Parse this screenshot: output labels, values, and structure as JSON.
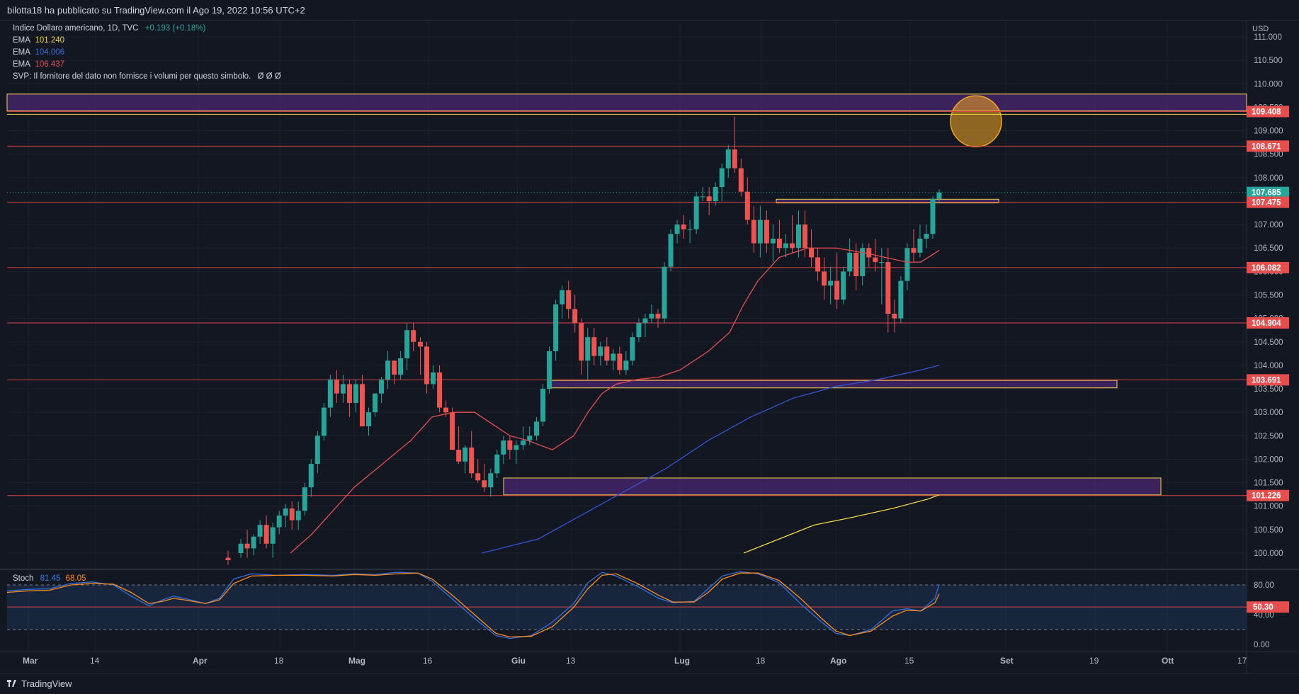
{
  "header": {
    "published_by": "bilotta18 ha pubblicato su TradingView.com il Ago 19, 2022 10:56 UTC+2"
  },
  "legend": {
    "symbol": "Indice Dollaro americano, 1D, TVC",
    "change": "+0.193 (+0.18%)",
    "change_color": "#26a69a",
    "ema1_label": "EMA",
    "ema1_value": "101.240",
    "ema1_color": "#f5d64a",
    "ema2_label": "EMA",
    "ema2_value": "104.006",
    "ema2_color": "#2f56d6",
    "ema3_label": "EMA",
    "ema3_value": "106.437",
    "ema3_color": "#e84d4d",
    "svp_text": "SVP: Il fornitore del dato non fornisce i volumi per questo simbolo.",
    "svp_symbols": "Ø  Ø  Ø"
  },
  "price_axis": {
    "currency": "USD",
    "ticks": [
      "111.000",
      "110.500",
      "110.000",
      "109.500",
      "109.000",
      "108.500",
      "108.000",
      "107.500",
      "107.000",
      "106.500",
      "106.000",
      "105.500",
      "105.000",
      "104.500",
      "104.000",
      "103.500",
      "103.000",
      "102.500",
      "102.000",
      "101.500",
      "101.000",
      "100.500",
      "100.000"
    ],
    "level_labels": [
      {
        "value": "109.408",
        "price": 109.408,
        "color": "#e84d4d"
      },
      {
        "value": "108.671",
        "price": 108.671,
        "color": "#e84d4d"
      },
      {
        "value": "107.685",
        "price": 107.685,
        "color": "#26a69a"
      },
      {
        "value": "107.475",
        "price": 107.475,
        "color": "#e84d4d"
      },
      {
        "value": "106.082",
        "price": 106.082,
        "color": "#e84d4d"
      },
      {
        "value": "104.904",
        "price": 104.904,
        "color": "#e84d4d"
      },
      {
        "value": "103.691",
        "price": 103.691,
        "color": "#e84d4d"
      },
      {
        "value": "101.226",
        "price": 101.226,
        "color": "#e84d4d"
      }
    ]
  },
  "time_axis": {
    "labels": [
      {
        "text": "Mar",
        "bold": true
      },
      {
        "text": "14",
        "bold": false
      },
      {
        "text": "Apr",
        "bold": true
      },
      {
        "text": "18",
        "bold": false
      },
      {
        "text": "Mag",
        "bold": true
      },
      {
        "text": "16",
        "bold": false
      },
      {
        "text": "Giu",
        "bold": true
      },
      {
        "text": "13",
        "bold": false
      },
      {
        "text": "Lug",
        "bold": true
      },
      {
        "text": "18",
        "bold": false
      },
      {
        "text": "Ago",
        "bold": true
      },
      {
        "text": "15",
        "bold": false
      },
      {
        "text": "Set",
        "bold": true
      },
      {
        "text": "19",
        "bold": false
      },
      {
        "text": "Ott",
        "bold": true
      },
      {
        "text": "17",
        "bold": false
      }
    ]
  },
  "stoch": {
    "label": "Stoch",
    "k_value": "81.45",
    "k_color": "#2f6fe0",
    "d_value": "68.05",
    "d_color": "#ff8c1a",
    "axis_ticks": [
      "80.00",
      "40.00",
      "0.00"
    ],
    "level_label": "50.30",
    "level_color": "#e84d4d"
  },
  "footer": {
    "brand": "TradingView"
  },
  "colors": {
    "up": "#26a69a",
    "down": "#ef5350",
    "zone_fill": "#4a2770",
    "zone_border": "#f5d64a"
  }
}
